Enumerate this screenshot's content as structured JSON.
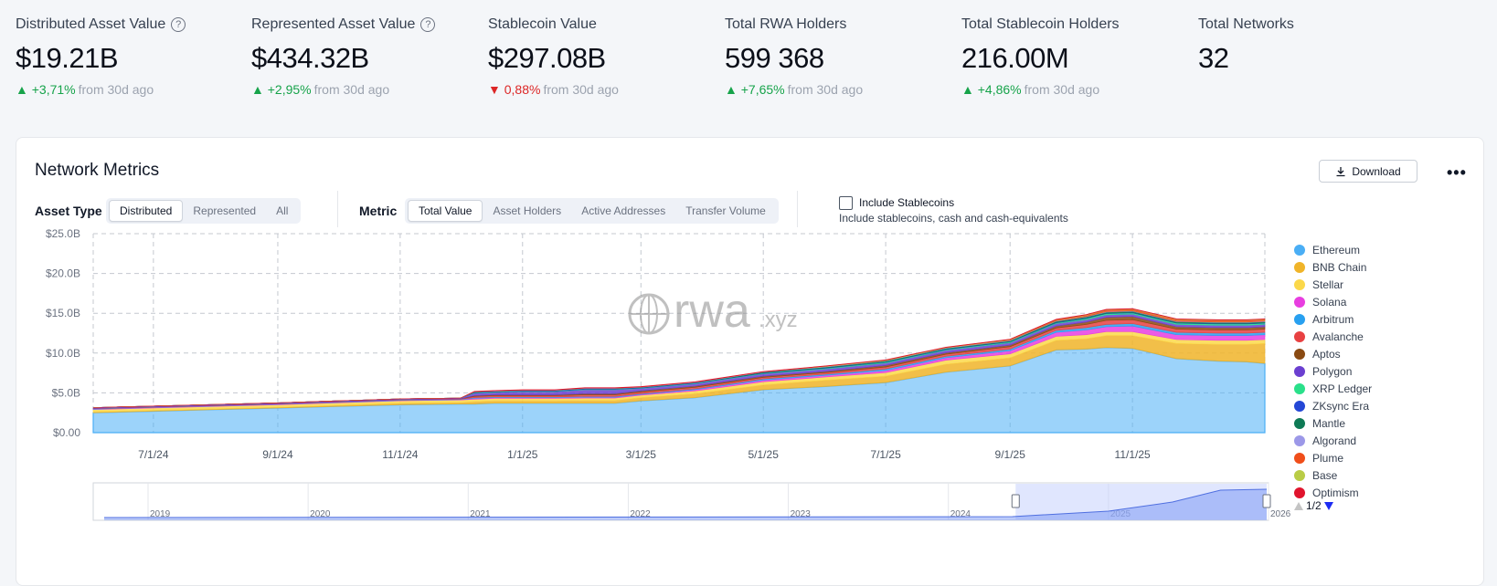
{
  "stats": [
    {
      "label": "Distributed Asset Value",
      "help": true,
      "value": "$19.21B",
      "direction": "up",
      "change": "+3,71%",
      "suffix": "from 30d ago"
    },
    {
      "label": "Represented Asset Value",
      "help": true,
      "value": "$434.32B",
      "direction": "up",
      "change": "+2,95%",
      "suffix": "from 30d ago"
    },
    {
      "label": "Stablecoin Value",
      "help": false,
      "value": "$297.08B",
      "direction": "down",
      "change": "0,88%",
      "suffix": "from 30d ago"
    },
    {
      "label": "Total RWA Holders",
      "help": false,
      "value": "599 368",
      "direction": "up",
      "change": "+7,65%",
      "suffix": "from 30d ago"
    },
    {
      "label": "Total Stablecoin Holders",
      "help": false,
      "value": "216.00M",
      "direction": "up",
      "change": "+4,86%",
      "suffix": "from 30d ago"
    },
    {
      "label": "Total Networks",
      "help": false,
      "value": "32",
      "direction": "",
      "change": "",
      "suffix": ""
    }
  ],
  "card": {
    "title": "Network Metrics",
    "download_label": "Download",
    "more_icon": "more-horizontal-icon",
    "asset_type_label": "Asset Type",
    "asset_types": [
      "Distributed",
      "Represented",
      "All"
    ],
    "asset_type_selected": "Distributed",
    "metric_label": "Metric",
    "metrics": [
      "Total Value",
      "Asset Holders",
      "Active Addresses",
      "Transfer Volume"
    ],
    "metric_selected": "Total Value",
    "include_stablecoins_label": "Include Stablecoins",
    "include_stablecoins_checked": false,
    "include_stablecoins_desc": "Include stablecoins, cash and cash-equivalents",
    "watermark": "rwa",
    "watermark_suffix": ".xyz",
    "pager": "1/2"
  },
  "colors": {
    "up": "#16a34a",
    "down": "#dc2626",
    "accent": "#2563eb"
  },
  "chart_data": {
    "type": "area",
    "stacked": true,
    "y_ticks": [
      "$25.0B",
      "$20.0B",
      "$15.0B",
      "$10.0B",
      "$5.0B",
      "$0.00"
    ],
    "ylim": [
      0,
      25
    ],
    "x_ticks": [
      "7/1/24",
      "9/1/24",
      "11/1/24",
      "1/1/25",
      "3/1/25",
      "5/1/25",
      "7/1/25",
      "9/1/25",
      "11/1/25"
    ],
    "x_tick_days": [
      30,
      92,
      153,
      214,
      273,
      334,
      395,
      457,
      518
    ],
    "xlim_days": [
      0,
      584
    ],
    "grid": true,
    "legend_position": "right",
    "x": [
      0,
      30,
      61,
      92,
      122,
      153,
      183,
      190,
      200,
      214,
      230,
      245,
      260,
      273,
      300,
      334,
      365,
      395,
      425,
      457,
      480,
      495,
      505,
      518,
      540,
      560,
      575,
      584
    ],
    "series": [
      {
        "name": "Ethereum",
        "color": "#4aaef5",
        "values": [
          2.5,
          2.7,
          2.9,
          3.1,
          3.3,
          3.5,
          3.6,
          3.6,
          3.7,
          3.7,
          3.7,
          3.7,
          3.7,
          4.0,
          4.4,
          5.4,
          5.8,
          6.3,
          7.6,
          8.4,
          10.4,
          10.5,
          10.7,
          10.6,
          9.3,
          9.0,
          8.9,
          8.7
        ]
      },
      {
        "name": "BNB Chain",
        "color": "#f0b429",
        "values": [
          0.1,
          0.1,
          0.1,
          0.1,
          0.15,
          0.2,
          0.2,
          0.3,
          0.3,
          0.3,
          0.3,
          0.35,
          0.35,
          0.4,
          0.5,
          0.6,
          0.8,
          0.8,
          1.0,
          1.0,
          1.2,
          1.3,
          1.5,
          1.6,
          1.9,
          2.1,
          2.2,
          2.5
        ]
      },
      {
        "name": "Stellar",
        "color": "#fbd84a",
        "values": [
          0.3,
          0.3,
          0.3,
          0.3,
          0.3,
          0.3,
          0.3,
          0.3,
          0.3,
          0.3,
          0.3,
          0.3,
          0.3,
          0.3,
          0.35,
          0.4,
          0.4,
          0.45,
          0.5,
          0.5,
          0.5,
          0.5,
          0.5,
          0.5,
          0.5,
          0.5,
          0.5,
          0.5
        ]
      },
      {
        "name": "Solana",
        "color": "#e83ee0",
        "values": [
          0.05,
          0.05,
          0.05,
          0.05,
          0.05,
          0.05,
          0.05,
          0.1,
          0.1,
          0.1,
          0.1,
          0.1,
          0.1,
          0.1,
          0.15,
          0.2,
          0.2,
          0.25,
          0.3,
          0.4,
          0.5,
          0.6,
          0.6,
          0.7,
          0.6,
          0.6,
          0.6,
          0.6
        ]
      },
      {
        "name": "Arbitrum",
        "color": "#28a0f0",
        "values": [
          0.05,
          0.05,
          0.05,
          0.05,
          0.05,
          0.05,
          0.05,
          0.1,
          0.1,
          0.1,
          0.1,
          0.1,
          0.1,
          0.1,
          0.1,
          0.15,
          0.15,
          0.2,
          0.2,
          0.2,
          0.25,
          0.3,
          0.3,
          0.3,
          0.3,
          0.3,
          0.3,
          0.3
        ]
      },
      {
        "name": "Avalanche",
        "color": "#e84142",
        "values": [
          0.05,
          0.05,
          0.05,
          0.05,
          0.05,
          0.05,
          0.05,
          0.15,
          0.15,
          0.15,
          0.15,
          0.2,
          0.2,
          0.2,
          0.2,
          0.2,
          0.2,
          0.25,
          0.25,
          0.3,
          0.3,
          0.4,
          0.5,
          0.5,
          0.4,
          0.4,
          0.4,
          0.4
        ]
      },
      {
        "name": "Aptos",
        "color": "#8a4a12",
        "values": [
          0.0,
          0.0,
          0.0,
          0.0,
          0.0,
          0.0,
          0.0,
          0.1,
          0.1,
          0.1,
          0.1,
          0.15,
          0.15,
          0.15,
          0.15,
          0.15,
          0.15,
          0.2,
          0.2,
          0.2,
          0.25,
          0.3,
          0.4,
          0.4,
          0.3,
          0.3,
          0.3,
          0.3
        ]
      },
      {
        "name": "Polygon",
        "color": "#6b3fd0",
        "values": [
          0.1,
          0.1,
          0.1,
          0.1,
          0.1,
          0.1,
          0.1,
          0.3,
          0.3,
          0.4,
          0.4,
          0.5,
          0.5,
          0.3,
          0.3,
          0.3,
          0.3,
          0.3,
          0.3,
          0.3,
          0.3,
          0.3,
          0.3,
          0.3,
          0.3,
          0.3,
          0.3,
          0.3
        ]
      },
      {
        "name": "XRP Ledger",
        "color": "#2ae08a",
        "values": [
          0.0,
          0.0,
          0.0,
          0.0,
          0.0,
          0.0,
          0.0,
          0.05,
          0.05,
          0.05,
          0.05,
          0.05,
          0.05,
          0.05,
          0.05,
          0.05,
          0.1,
          0.1,
          0.1,
          0.1,
          0.1,
          0.15,
          0.15,
          0.15,
          0.15,
          0.15,
          0.15,
          0.15
        ]
      },
      {
        "name": "ZKsync Era",
        "color": "#2447d6",
        "values": [
          0.0,
          0.0,
          0.0,
          0.0,
          0.0,
          0.0,
          0.0,
          0.05,
          0.05,
          0.05,
          0.05,
          0.05,
          0.05,
          0.05,
          0.05,
          0.05,
          0.05,
          0.05,
          0.05,
          0.05,
          0.05,
          0.05,
          0.05,
          0.05,
          0.05,
          0.05,
          0.05,
          0.05
        ]
      },
      {
        "name": "Mantle",
        "color": "#0e7a55",
        "values": [
          0.0,
          0.0,
          0.0,
          0.0,
          0.0,
          0.0,
          0.0,
          0.05,
          0.05,
          0.05,
          0.05,
          0.05,
          0.05,
          0.05,
          0.05,
          0.1,
          0.1,
          0.1,
          0.1,
          0.1,
          0.15,
          0.15,
          0.15,
          0.15,
          0.15,
          0.15,
          0.15,
          0.15
        ]
      },
      {
        "name": "Algorand",
        "color": "#9c98e8",
        "values": [
          0.0,
          0.0,
          0.0,
          0.0,
          0.0,
          0.0,
          0.0,
          0.05,
          0.05,
          0.05,
          0.05,
          0.05,
          0.05,
          0.05,
          0.05,
          0.05,
          0.05,
          0.05,
          0.05,
          0.05,
          0.05,
          0.05,
          0.05,
          0.05,
          0.05,
          0.05,
          0.05,
          0.05
        ]
      },
      {
        "name": "Plume",
        "color": "#f04e1a",
        "values": [
          0.0,
          0.0,
          0.0,
          0.0,
          0.0,
          0.0,
          0.0,
          0.0,
          0.0,
          0.0,
          0.0,
          0.0,
          0.0,
          0.0,
          0.0,
          0.0,
          0.0,
          0.0,
          0.0,
          0.05,
          0.1,
          0.15,
          0.2,
          0.2,
          0.2,
          0.2,
          0.2,
          0.2
        ]
      },
      {
        "name": "Base",
        "color": "#b9cc46",
        "values": [
          0.0,
          0.0,
          0.0,
          0.0,
          0.0,
          0.0,
          0.0,
          0.0,
          0.0,
          0.0,
          0.0,
          0.0,
          0.0,
          0.0,
          0.0,
          0.0,
          0.05,
          0.05,
          0.05,
          0.05,
          0.05,
          0.05,
          0.05,
          0.05,
          0.05,
          0.05,
          0.05,
          0.05
        ]
      },
      {
        "name": "Optimism",
        "color": "#e0142d",
        "values": [
          0.0,
          0.0,
          0.0,
          0.0,
          0.0,
          0.0,
          0.0,
          0.05,
          0.05,
          0.05,
          0.05,
          0.05,
          0.05,
          0.05,
          0.05,
          0.05,
          0.05,
          0.05,
          0.05,
          0.05,
          0.05,
          0.05,
          0.05,
          0.05,
          0.05,
          0.05,
          0.05,
          0.05
        ]
      }
    ],
    "navigator": {
      "years": [
        "2019",
        "2020",
        "2021",
        "2022",
        "2023",
        "2024",
        "2025",
        "2026"
      ],
      "selected_range": [
        "6/2024",
        "1/2026"
      ]
    }
  }
}
